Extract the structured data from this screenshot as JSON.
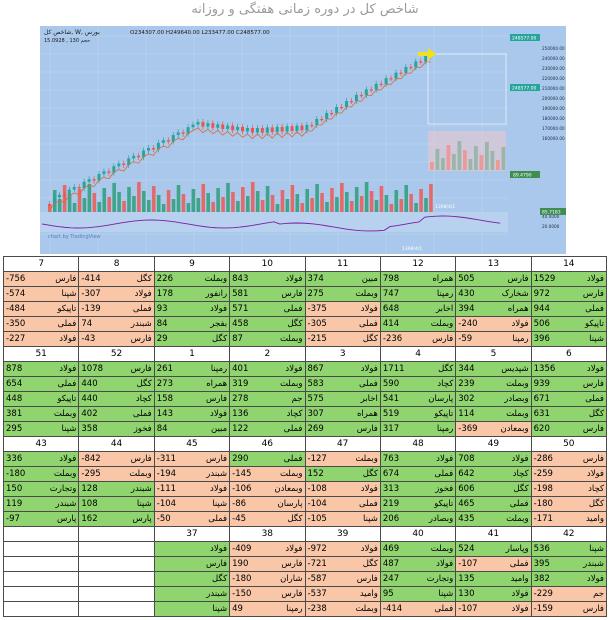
{
  "title": "شاخص کل در دوره زمانی هفتگی و روزانه",
  "chart": {
    "header_symbol": "شاخص کل, W, بورس",
    "header_ohlc": "O234307.00 H249640.00 L233477.00 C248577.00",
    "header_sub": "حجم 130 ,  15.0928",
    "price_tag_top": "248577.00",
    "price_tag_mid": "248577.00",
    "ind_tag_1": "89.4790",
    "ind_tag_2": "85.7183",
    "date_label_1": "1398/4/1",
    "date_label_2": "1398/4/1",
    "watermark": "chart by TradingView",
    "y_labels": [
      "250000.00",
      "240000.00",
      "230000.00",
      "220000.00",
      "210000.00",
      "200000.00",
      "190000.00",
      "180000.00",
      "170000.00",
      "160000.00"
    ],
    "low_labels": [
      "40.0000",
      "20.0000"
    ],
    "colors": {
      "bg": "#a9c8ec",
      "bull": "#26a69a",
      "bear": "#ef5350",
      "vol_bull": "#3fa58a",
      "vol_bear": "#e46a6a"
    }
  },
  "grid": {
    "rows": [
      {
        "headers": [
          "14",
          "13",
          "12",
          "11",
          "10",
          "9",
          "8",
          "7"
        ],
        "cells": [
          [
            {
              "n": "فولاد",
              "v": "1529",
              "c": "green"
            },
            {
              "n": "فارس",
              "v": "505",
              "c": "green"
            },
            {
              "n": "همراه",
              "v": "798",
              "c": "green"
            },
            {
              "n": "مبین",
              "v": "374",
              "c": "green"
            },
            {
              "n": "فولاد",
              "v": "843",
              "c": "green"
            },
            {
              "n": "وبملت",
              "v": "226",
              "c": "green"
            },
            {
              "n": "کگل",
              "v": "-414",
              "c": "pink"
            },
            {
              "n": "فارس",
              "v": "-756",
              "c": "pink"
            }
          ],
          [
            {
              "n": "فارس",
              "v": "972",
              "c": "green"
            },
            {
              "n": "شخارک",
              "v": "430",
              "c": "green"
            },
            {
              "n": "رمپنا",
              "v": "747",
              "c": "green"
            },
            {
              "n": "وبملت",
              "v": "275",
              "c": "green"
            },
            {
              "n": "فارس",
              "v": "581",
              "c": "green"
            },
            {
              "n": "رانفور",
              "v": "178",
              "c": "green"
            },
            {
              "n": "فولاد",
              "v": "-307",
              "c": "pink"
            },
            {
              "n": "شپنا",
              "v": "-574",
              "c": "pink"
            }
          ],
          [
            {
              "n": "فملی",
              "v": "944",
              "c": "green"
            },
            {
              "n": "همراه",
              "v": "394",
              "c": "green"
            },
            {
              "n": "اخابر",
              "v": "648",
              "c": "green"
            },
            {
              "n": "فولاد",
              "v": "-375",
              "c": "pink"
            },
            {
              "n": "فملی",
              "v": "571",
              "c": "green"
            },
            {
              "n": "فولاد",
              "v": "93",
              "c": "green"
            },
            {
              "n": "فملی",
              "v": "-139",
              "c": "pink"
            },
            {
              "n": "تاپیکو",
              "v": "-484",
              "c": "pink"
            }
          ],
          [
            {
              "n": "تاپیکو",
              "v": "506",
              "c": "green"
            },
            {
              "n": "فولاد",
              "v": "-240",
              "c": "pink"
            },
            {
              "n": "وبملت",
              "v": "414",
              "c": "green"
            },
            {
              "n": "فملی",
              "v": "-305",
              "c": "pink"
            },
            {
              "n": "کگل",
              "v": "458",
              "c": "green"
            },
            {
              "n": "بفجر",
              "v": "84",
              "c": "green"
            },
            {
              "n": "شبندر",
              "v": "74",
              "c": "pink"
            },
            {
              "n": "فملی",
              "v": "-350",
              "c": "pink"
            }
          ],
          [
            {
              "n": "شپنا",
              "v": "396",
              "c": "green"
            },
            {
              "n": "رمپنا",
              "v": "-59",
              "c": "pink"
            },
            {
              "n": "فارس",
              "v": "-236",
              "c": "pink"
            },
            {
              "n": "کگل",
              "v": "-215",
              "c": "pink"
            },
            {
              "n": "وبملت",
              "v": "87",
              "c": "green"
            },
            {
              "n": "کگل",
              "v": "29",
              "c": "green"
            },
            {
              "n": "فارس",
              "v": "-43",
              "c": "pink"
            },
            {
              "n": "فولاد",
              "v": "-227",
              "c": "pink"
            }
          ]
        ]
      },
      {
        "headers": [
          "6",
          "5",
          "4",
          "3",
          "2",
          "1",
          "52",
          "51"
        ],
        "cells": [
          [
            {
              "n": "فولاد",
              "v": "1356",
              "c": "green"
            },
            {
              "n": "شپدیس",
              "v": "344",
              "c": "green"
            },
            {
              "n": "کگل",
              "v": "1711",
              "c": "green"
            },
            {
              "n": "فولاد",
              "v": "867",
              "c": "green"
            },
            {
              "n": "فولاد",
              "v": "401",
              "c": "green"
            },
            {
              "n": "رمپنا",
              "v": "261",
              "c": "green"
            },
            {
              "n": "فارس",
              "v": "1078",
              "c": "green"
            },
            {
              "n": "فولاد",
              "v": "878",
              "c": "green"
            }
          ],
          [
            {
              "n": "فارس",
              "v": "939",
              "c": "green"
            },
            {
              "n": "وبملت",
              "v": "239",
              "c": "green"
            },
            {
              "n": "کچاد",
              "v": "590",
              "c": "green"
            },
            {
              "n": "فملی",
              "v": "583",
              "c": "green"
            },
            {
              "n": "وبملت",
              "v": "319",
              "c": "green"
            },
            {
              "n": "همراه",
              "v": "273",
              "c": "green"
            },
            {
              "n": "کگل",
              "v": "440",
              "c": "green"
            },
            {
              "n": "فملی",
              "v": "654",
              "c": "green"
            }
          ],
          [
            {
              "n": "فملی",
              "v": "671",
              "c": "green"
            },
            {
              "n": "وبصادر",
              "v": "302",
              "c": "green"
            },
            {
              "n": "پارسان",
              "v": "541",
              "c": "green"
            },
            {
              "n": "اخابر",
              "v": "575",
              "c": "green"
            },
            {
              "n": "جم",
              "v": "278",
              "c": "green"
            },
            {
              "n": "فارس",
              "v": "158",
              "c": "green"
            },
            {
              "n": "کچاد",
              "v": "440",
              "c": "green"
            },
            {
              "n": "تاپیکو",
              "v": "448",
              "c": "green"
            }
          ],
          [
            {
              "n": "کگل",
              "v": "631",
              "c": "green"
            },
            {
              "n": "وبملت",
              "v": "114",
              "c": "green"
            },
            {
              "n": "تاپیکو",
              "v": "519",
              "c": "green"
            },
            {
              "n": "همراه",
              "v": "307",
              "c": "green"
            },
            {
              "n": "کچاد",
              "v": "136",
              "c": "green"
            },
            {
              "n": "فولاد",
              "v": "143",
              "c": "green"
            },
            {
              "n": "فملی",
              "v": "402",
              "c": "green"
            },
            {
              "n": "وبملت",
              "v": "381",
              "c": "green"
            }
          ],
          [
            {
              "n": "فارس",
              "v": "620",
              "c": "green"
            },
            {
              "n": "وبمعادن",
              "v": "-369",
              "c": "pink"
            },
            {
              "n": "رمپنا",
              "v": "317",
              "c": "green"
            },
            {
              "n": "فارس",
              "v": "269",
              "c": "green"
            },
            {
              "n": "فملی",
              "v": "122",
              "c": "green"
            },
            {
              "n": "مبین",
              "v": "84",
              "c": "green"
            },
            {
              "n": "فخوز",
              "v": "358",
              "c": "green"
            },
            {
              "n": "شپنا",
              "v": "295",
              "c": "green"
            }
          ]
        ]
      },
      {
        "headers": [
          "50",
          "49",
          "48",
          "47",
          "46",
          "45",
          "44",
          "43"
        ],
        "cells": [
          [
            {
              "n": "فارس",
              "v": "-286",
              "c": "pink"
            },
            {
              "n": "فولاد",
              "v": "708",
              "c": "green"
            },
            {
              "n": "فولاد",
              "v": "763",
              "c": "green"
            },
            {
              "n": "وبملت",
              "v": "-127",
              "c": "pink"
            },
            {
              "n": "فملی",
              "v": "290",
              "c": "green"
            },
            {
              "n": "فارس",
              "v": "-311",
              "c": "pink"
            },
            {
              "n": "فارس",
              "v": "-842",
              "c": "pink"
            },
            {
              "n": "فولاد",
              "v": "336",
              "c": "green"
            }
          ],
          [
            {
              "n": "فولاد",
              "v": "-259",
              "c": "pink"
            },
            {
              "n": "کچاد",
              "v": "642",
              "c": "green"
            },
            {
              "n": "فملی",
              "v": "674",
              "c": "green"
            },
            {
              "n": "کگل",
              "v": "152",
              "c": "green"
            },
            {
              "n": "وبملت",
              "v": "-145",
              "c": "pink"
            },
            {
              "n": "شبندر",
              "v": "-194",
              "c": "pink"
            },
            {
              "n": "وبملت",
              "v": "-295",
              "c": "pink"
            },
            {
              "n": "وبملت",
              "v": "-180",
              "c": "green"
            }
          ],
          [
            {
              "n": "کچاد",
              "v": "-198",
              "c": "pink"
            },
            {
              "n": "کگل",
              "v": "606",
              "c": "green"
            },
            {
              "n": "فخوز",
              "v": "313",
              "c": "green"
            },
            {
              "n": "فولاد",
              "v": "-108",
              "c": "pink"
            },
            {
              "n": "وبمعادن",
              "v": "-106",
              "c": "pink"
            },
            {
              "n": "فولاد",
              "v": "-111",
              "c": "pink"
            },
            {
              "n": "شبندر",
              "v": "128",
              "c": "green"
            },
            {
              "n": "وتجارت",
              "v": "150",
              "c": "green"
            }
          ],
          [
            {
              "n": "کگل",
              "v": "-180",
              "c": "pink"
            },
            {
              "n": "فملی",
              "v": "465",
              "c": "green"
            },
            {
              "n": "تاپیکو",
              "v": "219",
              "c": "green"
            },
            {
              "n": "فملی",
              "v": "-104",
              "c": "pink"
            },
            {
              "n": "پارسان",
              "v": "-86",
              "c": "pink"
            },
            {
              "n": "شپنا",
              "v": "-104",
              "c": "pink"
            },
            {
              "n": "شپنا",
              "v": "108",
              "c": "green"
            },
            {
              "n": "شبندر",
              "v": "119",
              "c": "green"
            }
          ],
          [
            {
              "n": "وامید",
              "v": "-171",
              "c": "pink"
            },
            {
              "n": "وبملت",
              "v": "435",
              "c": "green"
            },
            {
              "n": "وبصادر",
              "v": "206",
              "c": "green"
            },
            {
              "n": "شپنا",
              "v": "-105",
              "c": "pink"
            },
            {
              "n": "کگل",
              "v": "-45",
              "c": "pink"
            },
            {
              "n": "فملی",
              "v": "-50",
              "c": "pink"
            },
            {
              "n": "پارس",
              "v": "162",
              "c": "green"
            },
            {
              "n": "پارس",
              "v": "-97",
              "c": "green"
            }
          ]
        ]
      },
      {
        "headers": [
          "42",
          "41",
          "40",
          "39",
          "38",
          "37",
          "",
          ""
        ],
        "cells": [
          [
            {
              "n": "شپنا",
              "v": "536",
              "c": "green"
            },
            {
              "n": "وپاسار",
              "v": "524",
              "c": "green"
            },
            {
              "n": "وبملت",
              "v": "469",
              "c": "green"
            },
            {
              "n": "فولاد",
              "v": "-972",
              "c": "pink"
            },
            {
              "n": "فولاد",
              "v": "-409",
              "c": "pink"
            },
            {
              "n": "",
              "v": "",
              "c": "green"
            },
            {
              "n": "",
              "v": "",
              "c": "white"
            },
            {
              "n": "",
              "v": "",
              "c": "white"
            }
          ],
          [
            {
              "n": "شبندر",
              "v": "395",
              "c": "green"
            },
            {
              "n": "فملی",
              "v": "-107",
              "c": "pink"
            },
            {
              "n": "فولاد",
              "v": "487",
              "c": "green"
            },
            {
              "n": "کگل",
              "v": "-721",
              "c": "pink"
            },
            {
              "n": "فارس",
              "v": "190",
              "c": "pink"
            },
            {
              "n": "",
              "v": "",
              "c": "green"
            },
            {
              "n": "",
              "v": "",
              "c": "white"
            },
            {
              "n": "",
              "v": "",
              "c": "white"
            }
          ],
          [
            {
              "n": "فولاد",
              "v": "382",
              "c": "green"
            },
            {
              "n": "وامید",
              "v": "135",
              "c": "green"
            },
            {
              "n": "وتجارت",
              "v": "247",
              "c": "green"
            },
            {
              "n": "فارس",
              "v": "-587",
              "c": "pink"
            },
            {
              "n": "شاران",
              "v": "-180",
              "c": "pink"
            },
            {
              "n": "",
              "v": "",
              "c": "green"
            },
            {
              "n": "",
              "v": "",
              "c": "white"
            },
            {
              "n": "",
              "v": "",
              "c": "white"
            }
          ],
          [
            {
              "n": "جم",
              "v": "-229",
              "c": "pink"
            },
            {
              "n": "فولاد",
              "v": "130",
              "c": "green"
            },
            {
              "n": "شپنا",
              "v": "95",
              "c": "green"
            },
            {
              "n": "وامید",
              "v": "-537",
              "c": "pink"
            },
            {
              "n": "فارس",
              "v": "-150",
              "c": "pink"
            },
            {
              "n": "",
              "v": "",
              "c": "green"
            },
            {
              "n": "",
              "v": "",
              "c": "white"
            },
            {
              "n": "",
              "v": "",
              "c": "white"
            }
          ],
          [
            {
              "n": "فارس",
              "v": "-159",
              "c": "pink"
            },
            {
              "n": "فولاد",
              "v": "-107",
              "c": "pink"
            },
            {
              "n": "فملی",
              "v": "-414",
              "c": "pink"
            },
            {
              "n": "وبملت",
              "v": "-238",
              "c": "pink"
            },
            {
              "n": "رمپنا",
              "v": "49",
              "c": "pink"
            },
            {
              "n": "",
              "v": "",
              "c": "green"
            },
            {
              "n": "",
              "v": "",
              "c": "white"
            },
            {
              "n": "",
              "v": "",
              "c": "white"
            }
          ]
        ]
      }
    ],
    "extra_37": [
      "فولاد",
      "فارس",
      "کگل",
      "شبندر",
      "شپنا"
    ]
  }
}
